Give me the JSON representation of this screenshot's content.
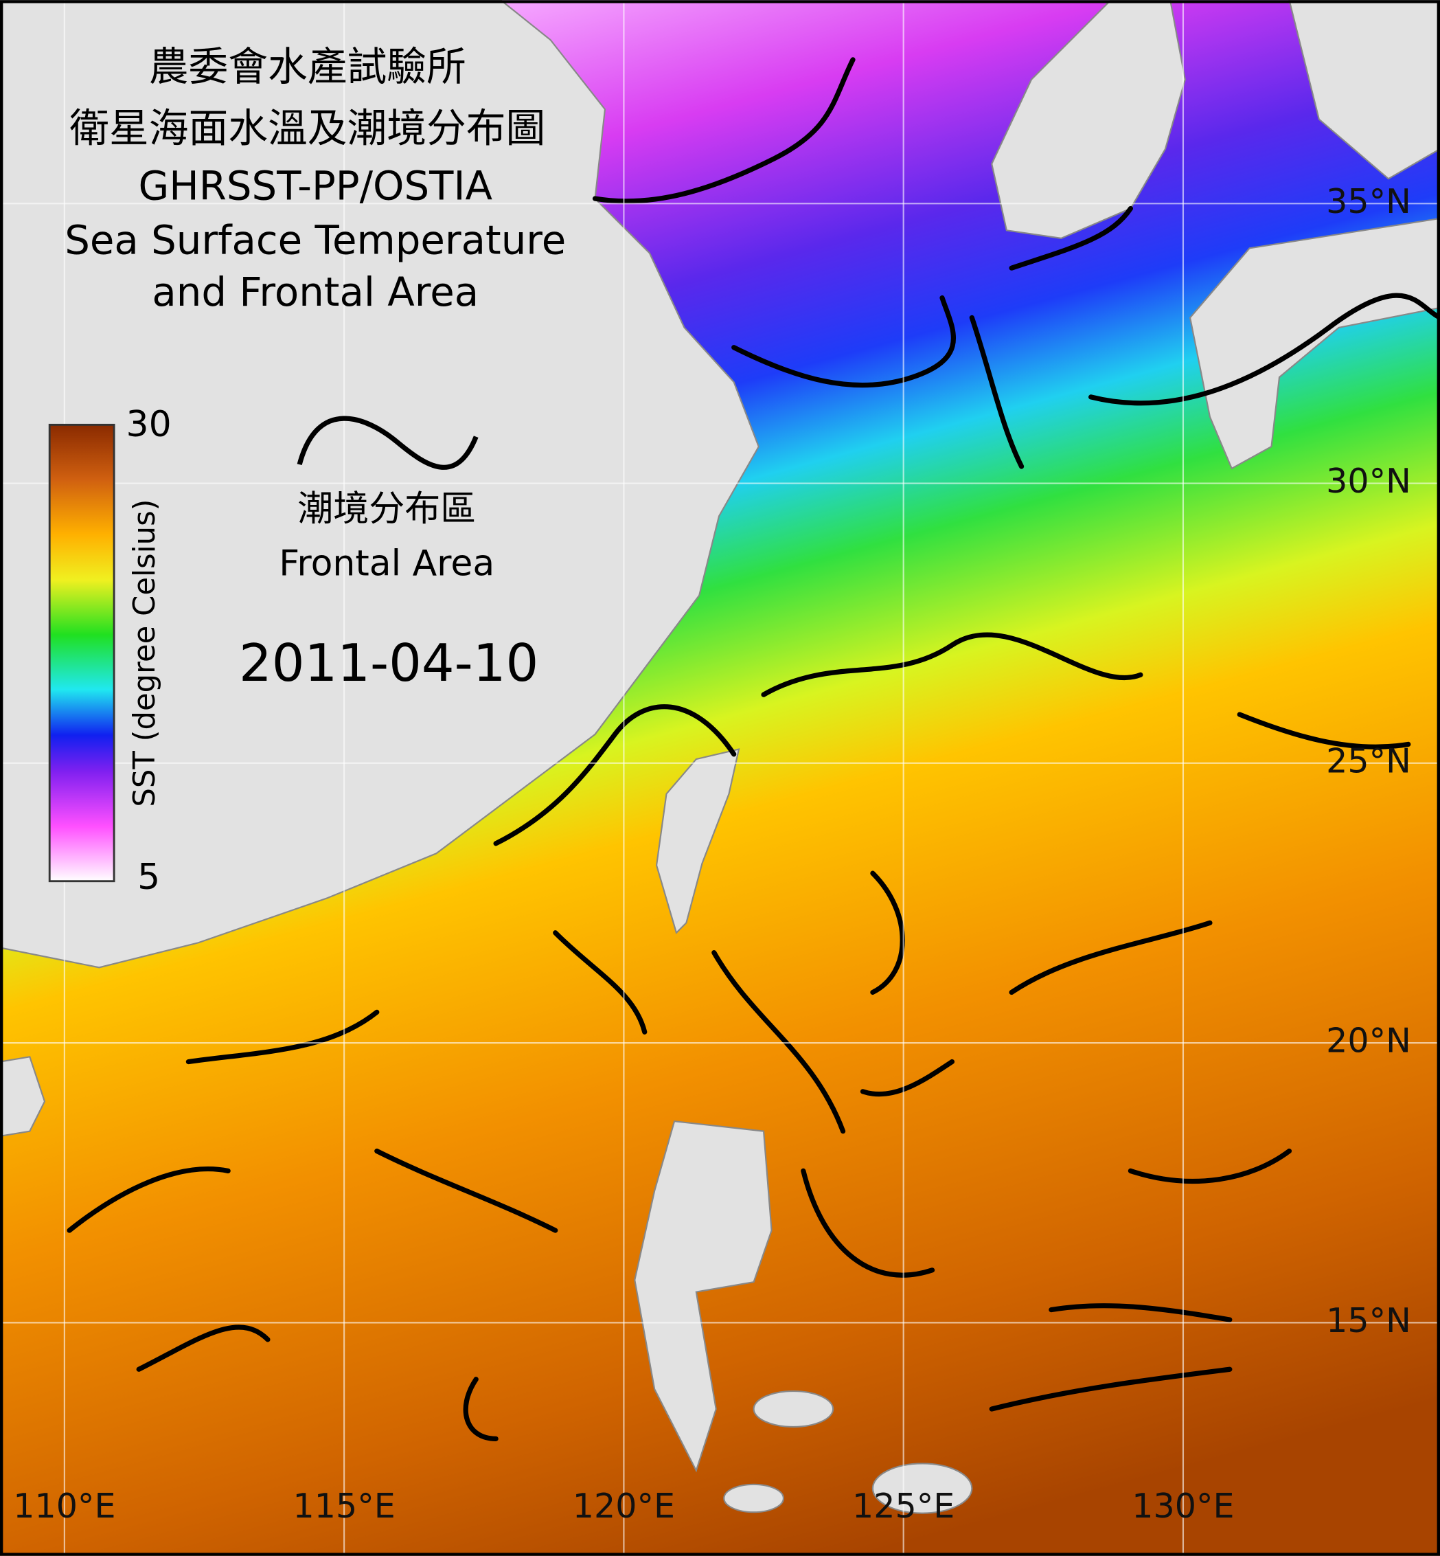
{
  "map": {
    "title": [
      "農委會水產試驗所",
      "衛星海面水溫及潮境分布圖",
      "GHRSST-PP/OSTIA",
      "Sea Surface Temperature",
      "and Frontal Area"
    ],
    "date": "2011-04-10",
    "colorbar": {
      "label": "SST (degree Celsius)",
      "range": [
        5,
        30
      ]
    },
    "legend": {
      "label_zh": "潮境分布區",
      "label_en": "Frontal Area"
    },
    "lat_ticks": [
      {
        "value": 35,
        "label": "35°N"
      },
      {
        "value": 30,
        "label": "30°N"
      },
      {
        "value": 25,
        "label": "25°N"
      },
      {
        "value": 20,
        "label": "20°N"
      },
      {
        "value": 15,
        "label": "15°N"
      }
    ],
    "lon_ticks": [
      {
        "value": 110,
        "label": "110°E"
      },
      {
        "value": 115,
        "label": "115°E"
      },
      {
        "value": 120,
        "label": "120°E"
      },
      {
        "value": 125,
        "label": "125°E"
      },
      {
        "value": 130,
        "label": "130°E"
      }
    ]
  }
}
